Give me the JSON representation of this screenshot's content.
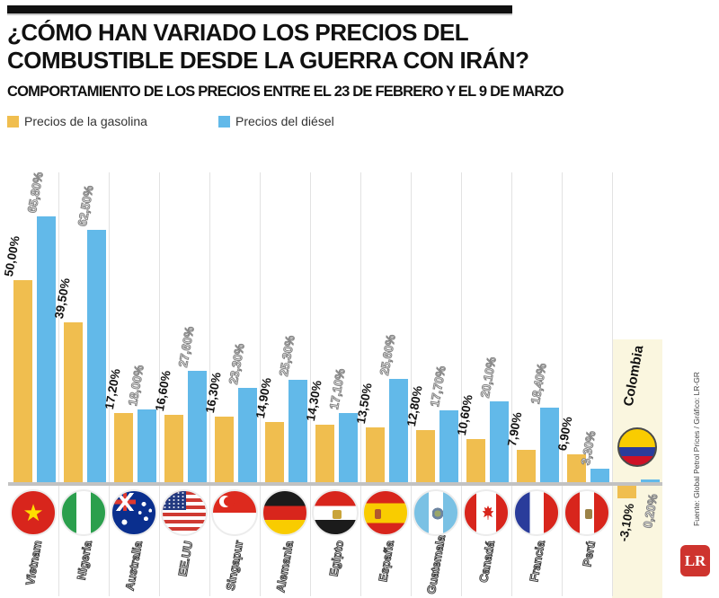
{
  "header": {
    "title_line1": "¿CÓMO HAN VARIADO LOS PRECIOS DEL",
    "title_line2": "COMBUSTIBLE DESDE LA GUERRA CON IRÁN?",
    "subtitle": "COMPORTAMIENTO DE LOS PRECIOS ENTRE EL 23 DE FEBRERO Y EL 9 DE MARZO"
  },
  "legend": {
    "gasoline_label": "Precios de la gasolina",
    "diesel_label": "Precios del diésel"
  },
  "colors": {
    "gasoline": "#f0be4f",
    "diesel": "#62b9e9",
    "axis": "#c2c2c2",
    "highlight": "#faf6df",
    "lr_red": "#ce342e"
  },
  "footer": {
    "source": "Fuente: Global Petrol Prices / Gráfico: LR-GR",
    "logo_text": "LR"
  },
  "chart_data": {
    "type": "bar",
    "title": "¿Cómo han variado los precios del combustible desde la guerra con Irán?",
    "categories": [
      "Vietnam",
      "Nigeria",
      "Australia",
      "EE.UU",
      "Singapur",
      "Alemania",
      "Egipto",
      "España",
      "Guatemala",
      "Canadá",
      "Francia",
      "Perú",
      "Colombia"
    ],
    "series": [
      {
        "name": "Precios de la gasolina",
        "values": [
          50.0,
          39.5,
          17.2,
          16.6,
          16.3,
          14.9,
          14.3,
          13.5,
          12.8,
          10.6,
          7.9,
          6.9,
          -3.1
        ]
      },
      {
        "name": "Precios del diésel",
        "values": [
          65.8,
          62.5,
          18.0,
          27.6,
          23.3,
          25.3,
          17.1,
          25.6,
          17.7,
          20.1,
          18.4,
          3.3,
          0.2
        ]
      }
    ],
    "ylim": [
      -5,
      70
    ],
    "grid": "vertical-column-separators",
    "legend_position": "top-left",
    "highlight_category": "Colombia",
    "countries": [
      {
        "name": "Vietnam",
        "flag": "vietnam",
        "gas": 50.0,
        "diesel": 65.8,
        "gas_label": "50,00%",
        "diesel_label": "65,80%",
        "highlight": false
      },
      {
        "name": "Nigeria",
        "flag": "nigeria",
        "gas": 39.5,
        "diesel": 62.5,
        "gas_label": "39,50%",
        "diesel_label": "62,50%",
        "highlight": false
      },
      {
        "name": "Australia",
        "flag": "australia",
        "gas": 17.2,
        "diesel": 18.0,
        "gas_label": "17,20%",
        "diesel_label": "18,00%",
        "highlight": false
      },
      {
        "name": "EE.UU",
        "flag": "eeuu",
        "gas": 16.6,
        "diesel": 27.6,
        "gas_label": "16,60%",
        "diesel_label": "27,60%",
        "highlight": false
      },
      {
        "name": "Singapur",
        "flag": "singapur",
        "gas": 16.3,
        "diesel": 23.3,
        "gas_label": "16,30%",
        "diesel_label": "23,30%",
        "highlight": false
      },
      {
        "name": "Alemania",
        "flag": "alemania",
        "gas": 14.9,
        "diesel": 25.3,
        "gas_label": "14,90%",
        "diesel_label": "25,30%",
        "highlight": false
      },
      {
        "name": "Egipto",
        "flag": "egipto",
        "gas": 14.3,
        "diesel": 17.1,
        "gas_label": "14,30%",
        "diesel_label": "17,10%",
        "highlight": false
      },
      {
        "name": "España",
        "flag": "espana",
        "gas": 13.5,
        "diesel": 25.6,
        "gas_label": "13,50%",
        "diesel_label": "25,60%",
        "highlight": false
      },
      {
        "name": "Guatemala",
        "flag": "guatemala",
        "gas": 12.8,
        "diesel": 17.7,
        "gas_label": "12,80%",
        "diesel_label": "17,70%",
        "highlight": false
      },
      {
        "name": "Canadá",
        "flag": "canada",
        "gas": 10.6,
        "diesel": 20.1,
        "gas_label": "10,60%",
        "diesel_label": "20,10%",
        "highlight": false
      },
      {
        "name": "Francia",
        "flag": "francia",
        "gas": 7.9,
        "diesel": 18.4,
        "gas_label": "7,90%",
        "diesel_label": "18,40%",
        "highlight": false
      },
      {
        "name": "Perú",
        "flag": "peru",
        "gas": 6.9,
        "diesel": 3.3,
        "gas_label": "6,90%",
        "diesel_label": "3,30%",
        "highlight": false
      },
      {
        "name": "Colombia",
        "flag": "colombia",
        "gas": -3.1,
        "diesel": 0.2,
        "gas_label": "-3,10%",
        "diesel_label": "0,20%",
        "highlight": true
      }
    ]
  }
}
